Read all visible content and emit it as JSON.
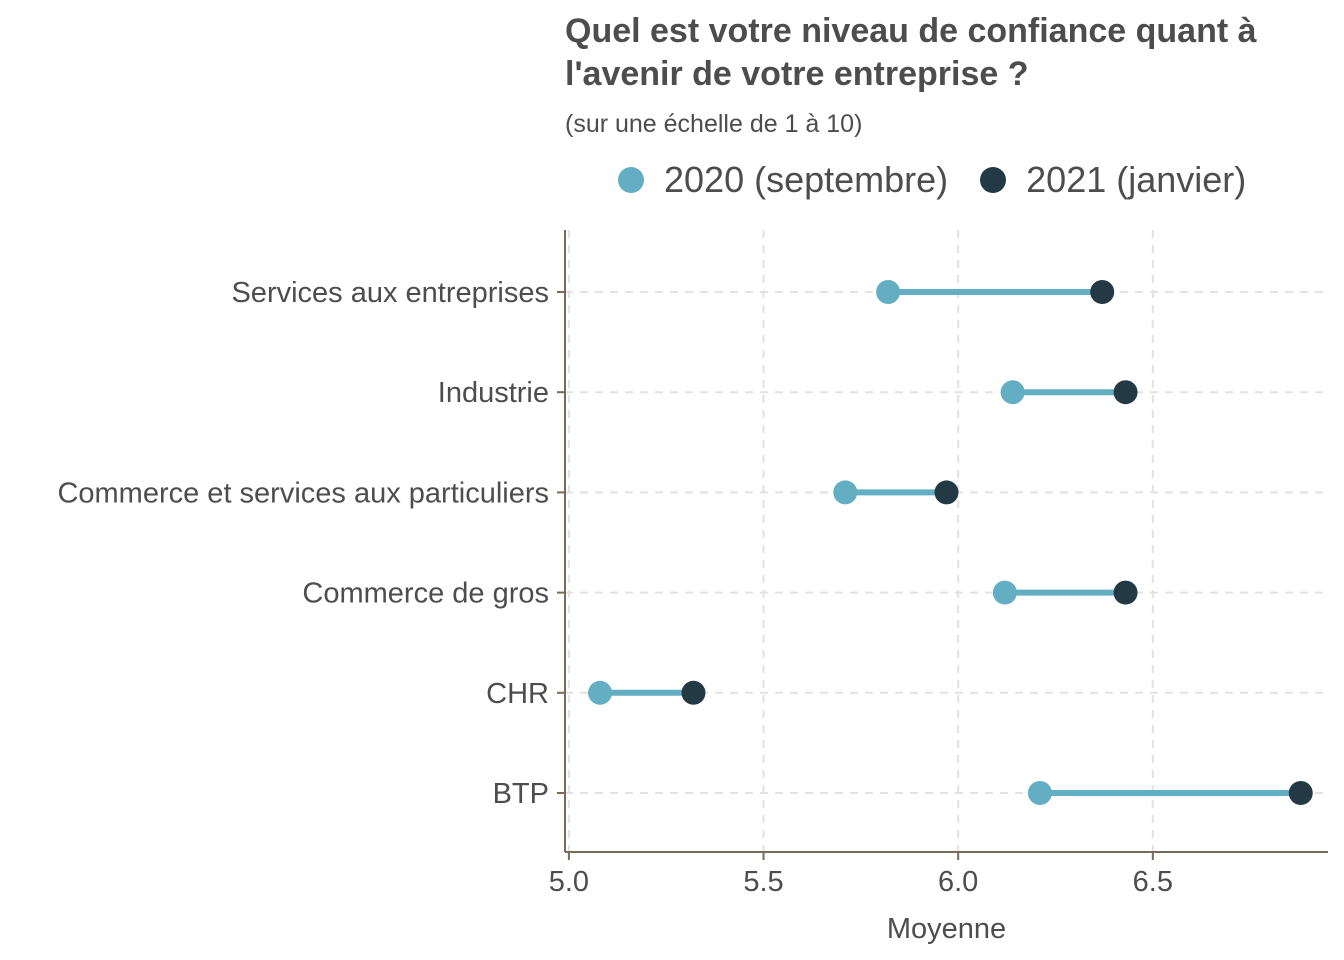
{
  "title": "Quel est votre niveau de confiance quant à l'avenir de votre entreprise ?",
  "subtitle": "(sur une échelle de 1 à 10)",
  "legend": [
    {
      "label": "2020 (septembre)",
      "color": "#64aec4"
    },
    {
      "label": "2021 (janvier)",
      "color": "#233a44"
    }
  ],
  "chart_data": {
    "type": "dumbbell",
    "categories": [
      "Services aux entreprises",
      "Industrie",
      "Commerce et services aux particuliers",
      "Commerce de gros",
      "CHR",
      "BTP"
    ],
    "series": [
      {
        "name": "2020 (septembre)",
        "color": "#64aec4",
        "values": [
          5.82,
          6.14,
          5.71,
          6.12,
          5.08,
          6.21
        ]
      },
      {
        "name": "2021 (janvier)",
        "color": "#233a44",
        "values": [
          6.37,
          6.43,
          5.97,
          6.43,
          5.32,
          6.88
        ]
      }
    ],
    "xlabel": "Moyenne",
    "ylabel": "",
    "xlim": [
      4.99,
      6.95
    ],
    "xticks": [
      5.0,
      5.5,
      6.0,
      6.5
    ],
    "xtick_labels": [
      "5.0",
      "5.5",
      "6.0",
      "6.5"
    ],
    "grid": true,
    "legend_position": "top"
  }
}
